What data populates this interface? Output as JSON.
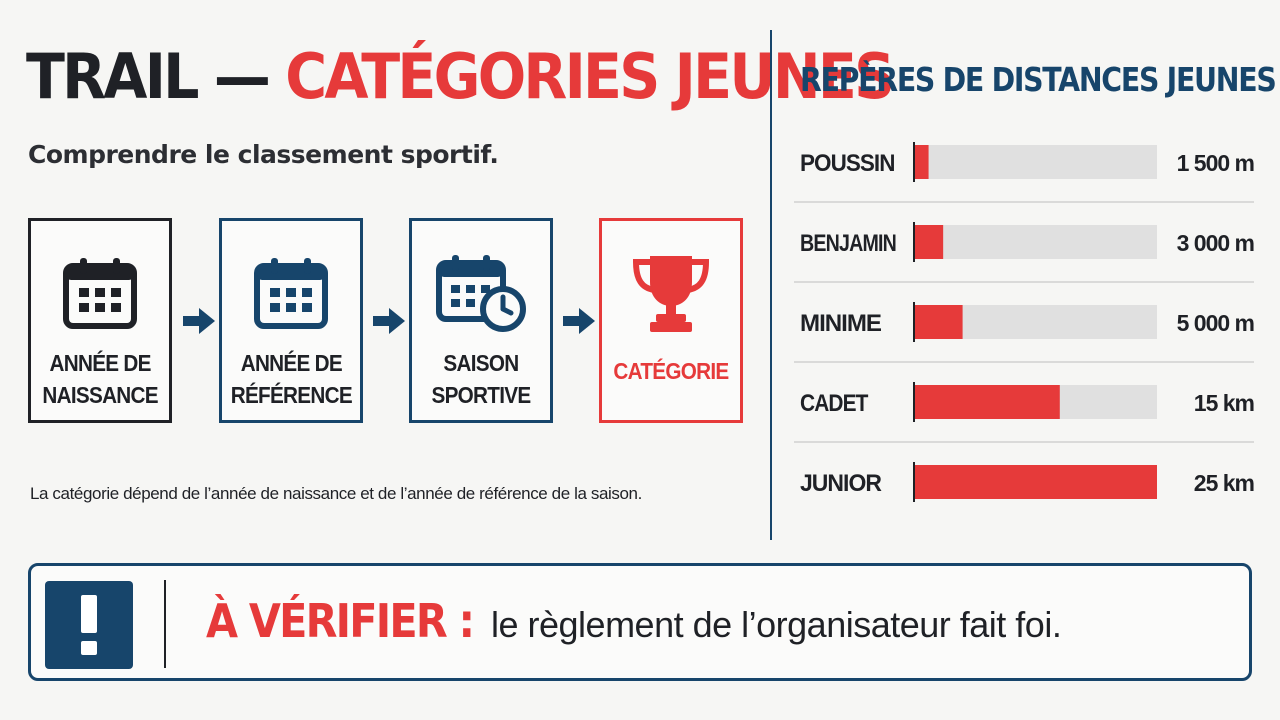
{
  "header": {
    "title_main": "TRAIL — ",
    "title_accent": "CATÉGORIES JEUNES",
    "subtitle": "Comprendre le classement sportif."
  },
  "flow": {
    "steps": [
      {
        "label_line1": "ANNÉE DE",
        "label_line2": "NAISSANCE",
        "icon": "calendar-icon"
      },
      {
        "label_line1": "ANNÉE DE",
        "label_line2": "RÉFÉRENCE",
        "icon": "calendar-icon"
      },
      {
        "label_line1": "SAISON",
        "label_line2": "SPORTIVE",
        "icon": "calendar-clock-icon"
      },
      {
        "label_line1": "CATÉGORIE",
        "label_line2": "",
        "icon": "trophy-icon"
      }
    ],
    "note": "La catégorie dépend de l’année de naissance et de l’année de référence de la saison."
  },
  "chart_data": {
    "type": "bar",
    "title": "REPÈRES DE DISTANCES JEUNES",
    "categories": [
      "POUSSIN",
      "BENJAMIN",
      "MINIME",
      "CADET",
      "JUNIOR"
    ],
    "values": [
      1500,
      3000,
      5000,
      15000,
      25000
    ],
    "value_labels": [
      "1 500 m",
      "3 000 m",
      "5 000 m",
      "15 km",
      "25 km"
    ],
    "unit": "m",
    "xlim": [
      0,
      25000
    ],
    "orientation": "horizontal",
    "colors": {
      "bar": "#e63a3a",
      "track": "#e0e0e0",
      "text": "#1f2126"
    }
  },
  "banner": {
    "icon": "exclamation-icon",
    "label": "À VÉRIFIER :",
    "text": "le règlement de l’organisateur fait foi."
  },
  "colors": {
    "red": "#e63a3a",
    "navy": "#17456b",
    "dark": "#1f2126",
    "background": "#f6f6f4"
  }
}
